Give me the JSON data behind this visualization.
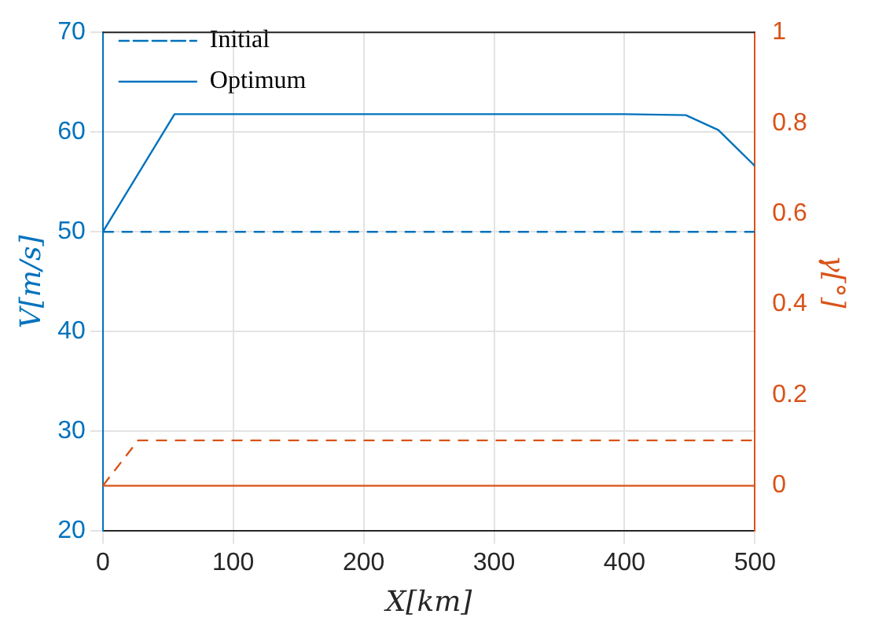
{
  "chart_data": {
    "type": "line",
    "xlabel": "X[km]",
    "ylabel": "V[m/s]",
    "y2label": "γ[°]",
    "xlim": [
      0,
      500
    ],
    "xticks": [
      0,
      100,
      200,
      300,
      400,
      500
    ],
    "ylim": [
      20,
      70
    ],
    "yticks": [
      20,
      30,
      40,
      50,
      60,
      70
    ],
    "y2lim": [
      -0.1,
      1
    ],
    "y2ticks": [
      0,
      0.2,
      0.4,
      0.6,
      0.8,
      1
    ],
    "grid": true,
    "legend": "top left",
    "marker": "none",
    "series": [
      {
        "name": "Initial",
        "color": "#0072bd",
        "line_style": "dashed",
        "x": [
          0,
          500
        ],
        "values": [
          50,
          50
        ]
      },
      {
        "name": "Optimum",
        "color": "#0072bd",
        "line_style": "solid",
        "x": [
          0,
          55,
          400,
          447,
          472,
          500
        ],
        "values": [
          50,
          61.8,
          61.8,
          61.7,
          60.2,
          56.6
        ]
      },
      {
        "color": "#d95319",
        "line_style": "dashed",
        "axis": "y2",
        "x": [
          0,
          27,
          500
        ],
        "values": [
          0,
          0.1,
          0.1
        ]
      },
      {
        "color": "#d95319",
        "line_style": "solid",
        "axis": "y2",
        "x": [
          0,
          500
        ],
        "values": [
          0,
          0
        ]
      }
    ]
  }
}
